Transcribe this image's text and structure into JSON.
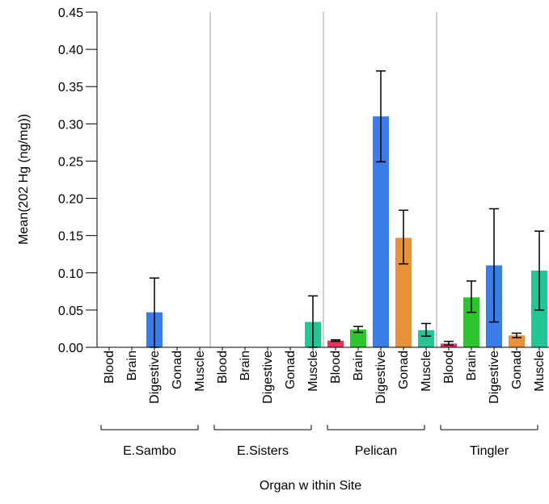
{
  "chart_data": {
    "type": "bar",
    "xlabel": "Organ w ithin Site",
    "ylabel": "Mean(202 Hg (ng/mg))",
    "ylim": [
      0,
      0.45
    ],
    "yticks": [
      "0.00",
      "0.05",
      "0.10",
      "0.15",
      "0.20",
      "0.25",
      "0.30",
      "0.35",
      "0.40",
      "0.45"
    ],
    "ytick_values": [
      0,
      0.05,
      0.1,
      0.15,
      0.2,
      0.25,
      0.3,
      0.35,
      0.4,
      0.45
    ],
    "organs": [
      "Blood",
      "Brain",
      "Digestive",
      "Gonad",
      "Muscle"
    ],
    "organ_colors": [
      "#e8325a",
      "#2ec42e",
      "#3b7de8",
      "#e8923b",
      "#24c494"
    ],
    "groups": [
      {
        "site": "E.Sambo",
        "values": [
          0,
          0,
          0.047,
          0,
          0
        ],
        "err_low": [
          0,
          0,
          0,
          0,
          0
        ],
        "err_high": [
          0,
          0,
          0.093,
          0,
          0
        ]
      },
      {
        "site": "E.Sisters",
        "values": [
          0,
          0,
          0,
          0,
          0.034
        ],
        "err_low": [
          0,
          0,
          0,
          0,
          0
        ],
        "err_high": [
          0,
          0,
          0,
          0,
          0.069
        ]
      },
      {
        "site": "Pelican",
        "values": [
          0.009,
          0.024,
          0.31,
          0.147,
          0.023
        ],
        "err_low": [
          0.008,
          0.02,
          0.249,
          0.112,
          0.015
        ],
        "err_high": [
          0.01,
          0.028,
          0.371,
          0.184,
          0.032
        ]
      },
      {
        "site": "Tingler",
        "values": [
          0.005,
          0.067,
          0.11,
          0.016,
          0.103
        ],
        "err_low": [
          0.003,
          0.047,
          0.034,
          0.013,
          0.05
        ],
        "err_high": [
          0.008,
          0.089,
          0.186,
          0.019,
          0.156
        ]
      }
    ]
  }
}
